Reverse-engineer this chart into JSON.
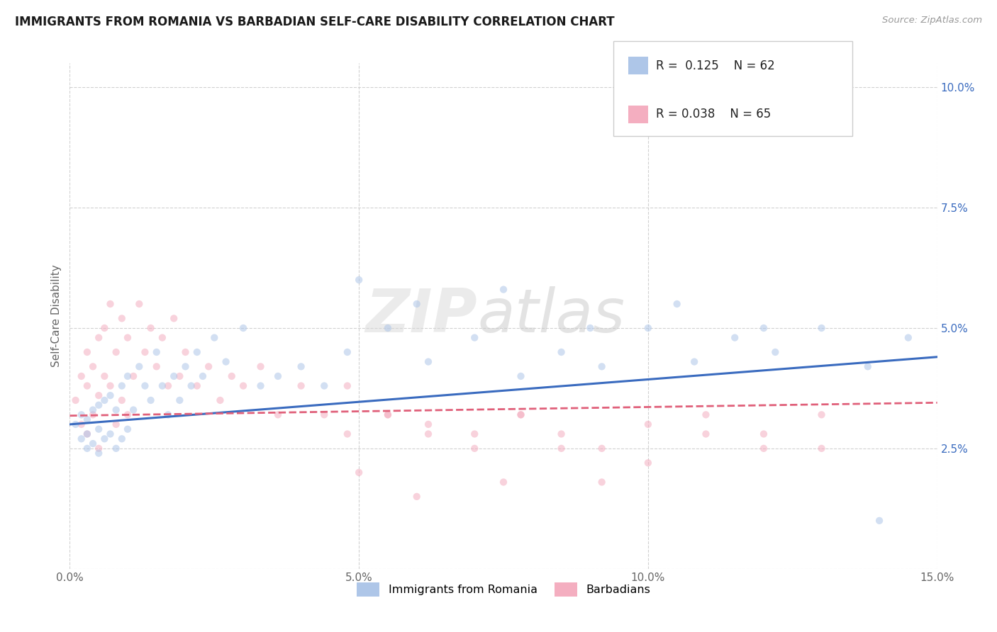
{
  "title": "IMMIGRANTS FROM ROMANIA VS BARBADIAN SELF-CARE DISABILITY CORRELATION CHART",
  "source": "Source: ZipAtlas.com",
  "xlabel": "",
  "ylabel": "Self-Care Disability",
  "xlim": [
    0.0,
    0.15
  ],
  "ylim": [
    0.0,
    0.105
  ],
  "xticks": [
    0.0,
    0.05,
    0.1,
    0.15
  ],
  "xticklabels": [
    "0.0%",
    "5.0%",
    "10.0%",
    "15.0%"
  ],
  "yticks": [
    0.0,
    0.025,
    0.05,
    0.075,
    0.1
  ],
  "yticklabels": [
    "",
    "2.5%",
    "5.0%",
    "7.5%",
    "10.0%"
  ],
  "legend_R1": "0.125",
  "legend_N1": "62",
  "legend_R2": "0.038",
  "legend_N2": "65",
  "series1_color": "#aec6e8",
  "series2_color": "#f4aec0",
  "line1_color": "#3a6bbf",
  "line2_color": "#e0607a",
  "romania_x": [
    0.001,
    0.002,
    0.002,
    0.003,
    0.003,
    0.003,
    0.004,
    0.004,
    0.005,
    0.005,
    0.005,
    0.006,
    0.006,
    0.007,
    0.007,
    0.008,
    0.008,
    0.009,
    0.009,
    0.01,
    0.01,
    0.011,
    0.012,
    0.013,
    0.014,
    0.015,
    0.016,
    0.017,
    0.018,
    0.019,
    0.02,
    0.021,
    0.022,
    0.023,
    0.025,
    0.027,
    0.03,
    0.033,
    0.036,
    0.04,
    0.044,
    0.048,
    0.055,
    0.062,
    0.07,
    0.078,
    0.085,
    0.092,
    0.1,
    0.108,
    0.115,
    0.122,
    0.13,
    0.138,
    0.145,
    0.05,
    0.06,
    0.075,
    0.09,
    0.105,
    0.12,
    0.14
  ],
  "romania_y": [
    0.03,
    0.027,
    0.032,
    0.025,
    0.028,
    0.031,
    0.026,
    0.033,
    0.024,
    0.029,
    0.034,
    0.027,
    0.035,
    0.028,
    0.036,
    0.025,
    0.033,
    0.027,
    0.038,
    0.029,
    0.04,
    0.033,
    0.042,
    0.038,
    0.035,
    0.045,
    0.038,
    0.032,
    0.04,
    0.035,
    0.042,
    0.038,
    0.045,
    0.04,
    0.048,
    0.043,
    0.05,
    0.038,
    0.04,
    0.042,
    0.038,
    0.045,
    0.05,
    0.043,
    0.048,
    0.04,
    0.045,
    0.042,
    0.05,
    0.043,
    0.048,
    0.045,
    0.05,
    0.042,
    0.048,
    0.06,
    0.055,
    0.058,
    0.05,
    0.055,
    0.05,
    0.01
  ],
  "barbadian_x": [
    0.001,
    0.002,
    0.002,
    0.003,
    0.003,
    0.003,
    0.004,
    0.004,
    0.005,
    0.005,
    0.005,
    0.006,
    0.006,
    0.007,
    0.007,
    0.008,
    0.008,
    0.009,
    0.009,
    0.01,
    0.01,
    0.011,
    0.012,
    0.013,
    0.014,
    0.015,
    0.016,
    0.017,
    0.018,
    0.019,
    0.02,
    0.022,
    0.024,
    0.026,
    0.028,
    0.03,
    0.033,
    0.036,
    0.04,
    0.044,
    0.048,
    0.055,
    0.062,
    0.07,
    0.078,
    0.085,
    0.048,
    0.055,
    0.062,
    0.07,
    0.078,
    0.085,
    0.092,
    0.1,
    0.11,
    0.12,
    0.13,
    0.11,
    0.12,
    0.13,
    0.092,
    0.1,
    0.05,
    0.06,
    0.075
  ],
  "barbadian_y": [
    0.035,
    0.03,
    0.04,
    0.028,
    0.038,
    0.045,
    0.032,
    0.042,
    0.036,
    0.048,
    0.025,
    0.04,
    0.05,
    0.038,
    0.055,
    0.03,
    0.045,
    0.035,
    0.052,
    0.032,
    0.048,
    0.04,
    0.055,
    0.045,
    0.05,
    0.042,
    0.048,
    0.038,
    0.052,
    0.04,
    0.045,
    0.038,
    0.042,
    0.035,
    0.04,
    0.038,
    0.042,
    0.032,
    0.038,
    0.032,
    0.028,
    0.032,
    0.03,
    0.028,
    0.032,
    0.025,
    0.038,
    0.032,
    0.028,
    0.025,
    0.032,
    0.028,
    0.025,
    0.03,
    0.028,
    0.025,
    0.032,
    0.032,
    0.028,
    0.025,
    0.018,
    0.022,
    0.02,
    0.015,
    0.018
  ],
  "watermark_zip": "ZIP",
  "watermark_atlas": "atlas",
  "bg_color": "#ffffff",
  "grid_color": "#cccccc",
  "title_fontsize": 12,
  "axis_fontsize": 11,
  "tick_fontsize": 11,
  "scatter_size": 55,
  "scatter_alpha": 0.55
}
